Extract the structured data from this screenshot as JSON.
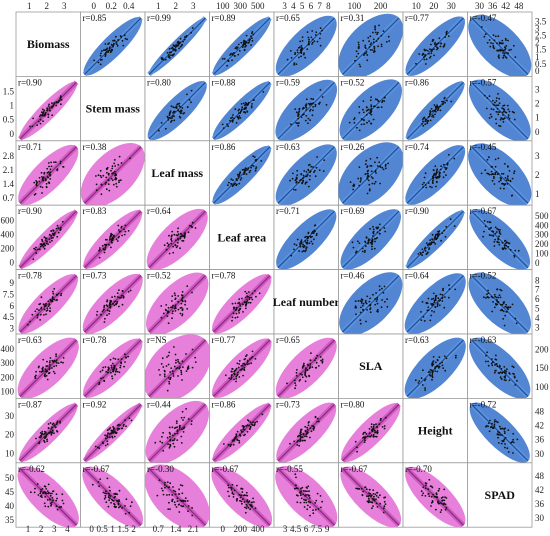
{
  "chart_data": {
    "type": "scatter",
    "variables": [
      "Biomass",
      "Stem mass",
      "Leaf mass",
      "Leaf area",
      "Leaf number",
      "SLA",
      "Height",
      "SPAD"
    ],
    "correlations": [
      [
        null,
        "r=0.85",
        "r=0.99",
        "r=0.89",
        "r=0.65",
        "r=0.31",
        "r=0.77",
        "r=-0.47"
      ],
      [
        "r=0.90",
        null,
        "r=0.80",
        "r=0.88",
        "r=0.59",
        "r=0.52",
        "r=0.86",
        "r=-0.57"
      ],
      [
        "r=0.71",
        "r=0.38",
        null,
        "r=0.86",
        "r=0.63",
        "r=0.26",
        "r=0.74",
        "r=-0.45"
      ],
      [
        "r=0.90",
        "r=0.83",
        "r=0.64",
        null,
        "r=0.71",
        "r=0.69",
        "r=0.90",
        "r=-0.67"
      ],
      [
        "r=0.78",
        "r=0.73",
        "r=0.52",
        "r=0.78",
        null,
        "r=0.46",
        "r=0.64",
        "r=-0.52"
      ],
      [
        "r=0.63",
        "r=0.78",
        "r=NS",
        "r=0.77",
        "r=0.65",
        null,
        "r=0.63",
        "r=-0.63"
      ],
      [
        "r=0.87",
        "r=0.92",
        "r=0.44",
        "r=0.86",
        "r=0.73",
        "r=0.80",
        null,
        "r=-0.72"
      ],
      [
        "r=-0.62",
        "r=-0.67",
        "r=-0.30",
        "r=-0.67",
        "r=-0.55",
        "r=-0.67",
        "r=-0.70",
        null
      ]
    ],
    "top_ticks": [
      [
        "1",
        "2",
        "3"
      ],
      [
        "0",
        "0.2",
        "0.4"
      ],
      [
        "1",
        "2",
        "3"
      ],
      [
        "100",
        "300",
        "500"
      ],
      [
        "3",
        "4",
        "5",
        "6",
        "7",
        "8"
      ],
      [
        "100",
        "200"
      ],
      [
        "10",
        "20",
        "30"
      ],
      [
        "30",
        "36",
        "42",
        "48"
      ]
    ],
    "bottom_ticks": [
      [
        "1",
        "2",
        "3",
        "4"
      ],
      [
        "0",
        "0.5",
        "1",
        "1.5",
        "2"
      ],
      [
        "0.7",
        "1.4",
        "2.1"
      ],
      [
        "0",
        "200",
        "400"
      ],
      [
        "3",
        "4.5",
        "6",
        "7.5",
        "9"
      ],
      [],
      [],
      []
    ],
    "left_ticks": [
      [],
      [
        "1.5",
        "1",
        "0.5",
        "0"
      ],
      [
        "2.8",
        "2.1",
        "1.4",
        "0.7"
      ],
      [
        "600",
        "400",
        "200",
        "0"
      ],
      [
        "9",
        "7.5",
        "6",
        "4.5",
        "3"
      ],
      [
        "400",
        "300",
        "200",
        "100"
      ],
      [
        "30",
        "20",
        "10"
      ],
      [
        "50",
        "45",
        "40",
        "35"
      ]
    ],
    "right_ticks": [
      [
        "3.5",
        "3",
        "2.5",
        "2",
        "1.5",
        "1",
        "0.5",
        "0"
      ],
      [
        "3",
        "2",
        "1",
        "0"
      ],
      [
        "3",
        "2",
        "1"
      ],
      [
        "500",
        "400",
        "300",
        "200",
        "100",
        "0"
      ],
      [
        "8",
        "7",
        "6",
        "5",
        "4",
        "3"
      ],
      [
        "200",
        "150",
        "100"
      ],
      [
        "48",
        "42",
        "36",
        "30"
      ],
      [
        "48",
        "42",
        "36",
        "30"
      ]
    ],
    "colors": {
      "upper": "#2f6fc8",
      "upper_ellipse": "#4a7fd0",
      "lower_ellipse": "#e26ad3",
      "points": "#111111"
    }
  }
}
